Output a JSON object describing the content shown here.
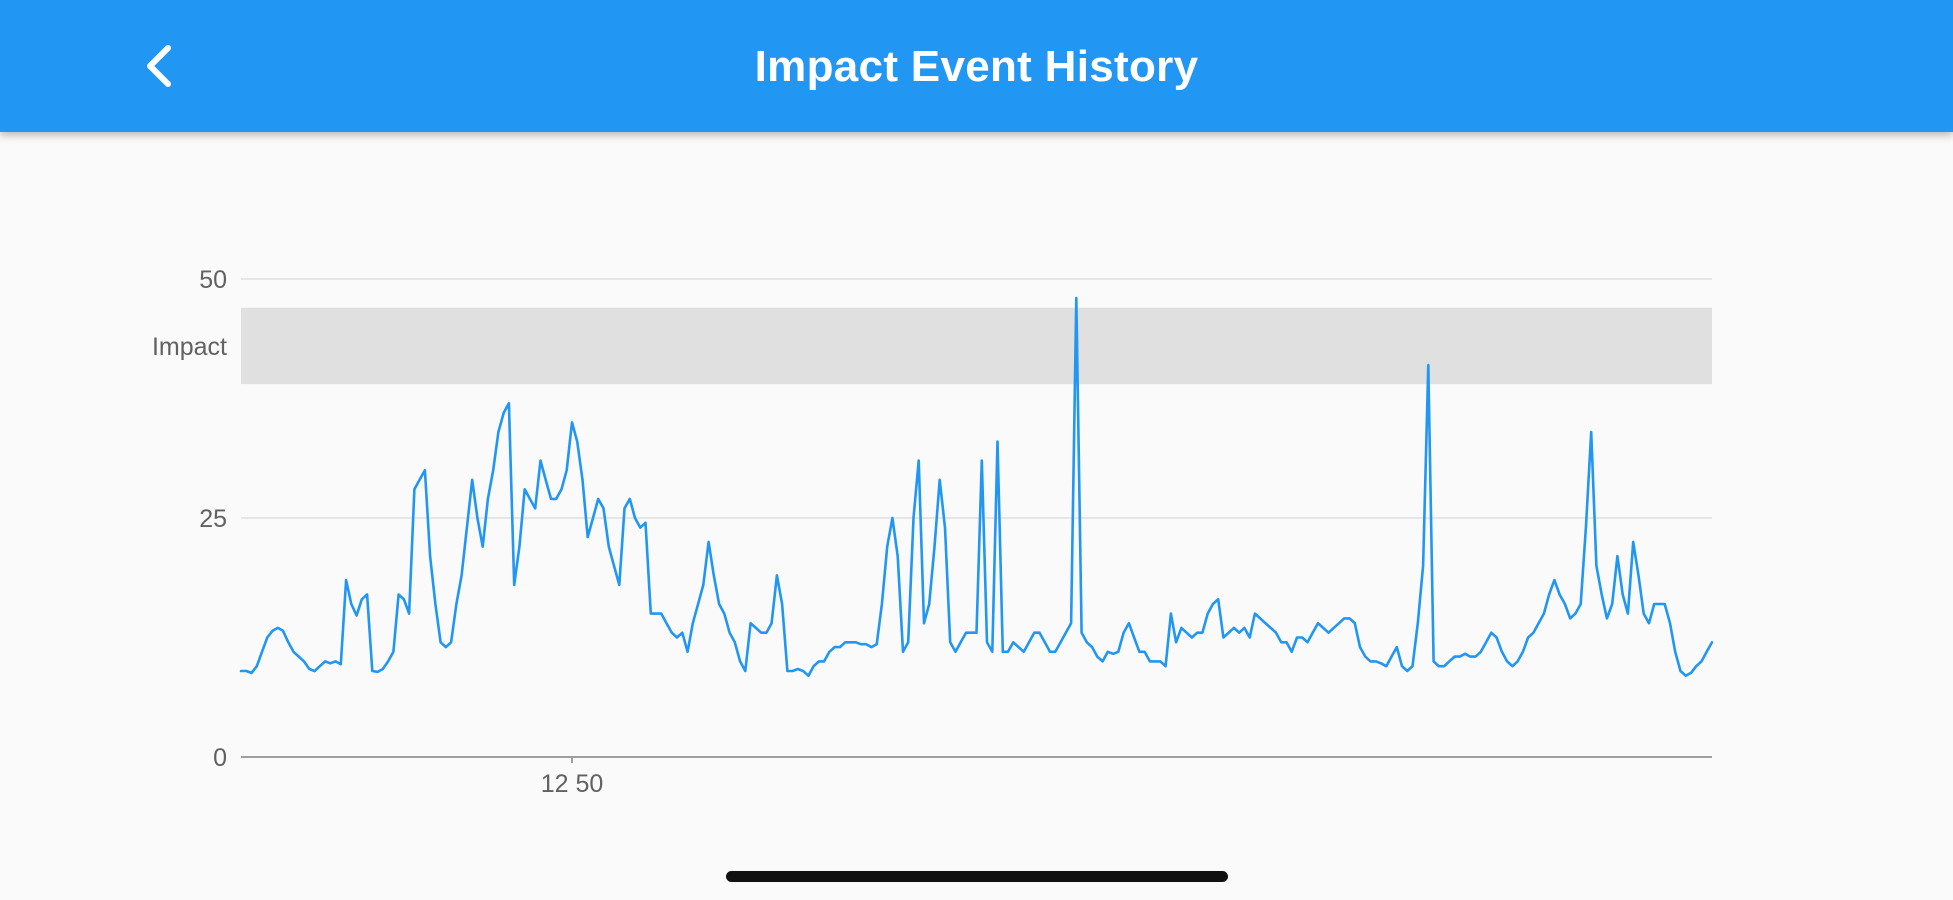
{
  "app_bar": {
    "title": "Impact Event History",
    "back_icon": "chevron-left-icon",
    "background_color": "#2196f3",
    "text_color": "#ffffff"
  },
  "chart_data": {
    "type": "line",
    "title": "",
    "xlabel": "",
    "ylabel": "",
    "ylim": [
      0,
      50
    ],
    "y_ticks": [
      "0",
      "25",
      "50"
    ],
    "x_ticks": [
      {
        "label": "12 50",
        "index": 63
      }
    ],
    "grid": "horizontal",
    "band": {
      "label": "Impact",
      "from": 39,
      "to": 47,
      "color": "#e0e0e0"
    },
    "line_color": "#2196f3",
    "series": [
      {
        "values": [
          9,
          9,
          8.8,
          9.5,
          11,
          12.5,
          13.2,
          13.5,
          13.2,
          12,
          11,
          10.5,
          10,
          9.2,
          9,
          9.5,
          10,
          9.8,
          10,
          9.7,
          18.5,
          16,
          14.8,
          16.5,
          17,
          9,
          8.9,
          9.2,
          10,
          11,
          17,
          16.5,
          15,
          28,
          29,
          30,
          21,
          16,
          12,
          11.5,
          12,
          16,
          19,
          24,
          29,
          25,
          22,
          27,
          30,
          34,
          36,
          37,
          18,
          22,
          28,
          27,
          26,
          31,
          29,
          27,
          27,
          28,
          30,
          35,
          33,
          29,
          23,
          25,
          27,
          26,
          22,
          20,
          18,
          26,
          27,
          25,
          24,
          24.5,
          15,
          15,
          15,
          14,
          13,
          12.5,
          13,
          11,
          14,
          16,
          18,
          22.5,
          19,
          16,
          15,
          13,
          12,
          10,
          9,
          14,
          13.5,
          13,
          13,
          14,
          19,
          16,
          9,
          9,
          9.2,
          9,
          8.5,
          9.5,
          10,
          10,
          11,
          11.5,
          11.5,
          12,
          12,
          12,
          11.8,
          11.8,
          11.5,
          11.8,
          16,
          22,
          25,
          21,
          11,
          12,
          25,
          31,
          14,
          16,
          22,
          29,
          24,
          12,
          11,
          12,
          13,
          13,
          13,
          31,
          12,
          11,
          33,
          11,
          11,
          12,
          11.5,
          11,
          12,
          13,
          13,
          12,
          11,
          11,
          12,
          13,
          14,
          48,
          13,
          12,
          11.5,
          10.5,
          10,
          11,
          10.8,
          11,
          13,
          14,
          12.5,
          11,
          11,
          10,
          10,
          10,
          9.5,
          15,
          12,
          13.5,
          13,
          12.5,
          13,
          13,
          15,
          16,
          16.5,
          12.5,
          13,
          13.5,
          13,
          13.5,
          12.5,
          15,
          14.5,
          14,
          13.5,
          13,
          12,
          12,
          11,
          12.5,
          12.5,
          12,
          13,
          14,
          13.5,
          13,
          13.5,
          14,
          14.5,
          14.5,
          14,
          11.5,
          10.5,
          10,
          10,
          9.8,
          9.5,
          10.5,
          11.5,
          9.5,
          9,
          9.5,
          14,
          20,
          41,
          10,
          9.5,
          9.5,
          10,
          10.5,
          10.5,
          10.8,
          10.5,
          10.5,
          11,
          12,
          13,
          12.5,
          11,
          10,
          9.5,
          10,
          11,
          12.5,
          13,
          14,
          15,
          17,
          18.5,
          17,
          16,
          14.5,
          15,
          16,
          24,
          34,
          20,
          17,
          14.5,
          16,
          21,
          17,
          15,
          22.5,
          19,
          15,
          14,
          16,
          16,
          16,
          14,
          11,
          9,
          8.5,
          8.8,
          9.5,
          10,
          11,
          12
        ]
      }
    ]
  }
}
